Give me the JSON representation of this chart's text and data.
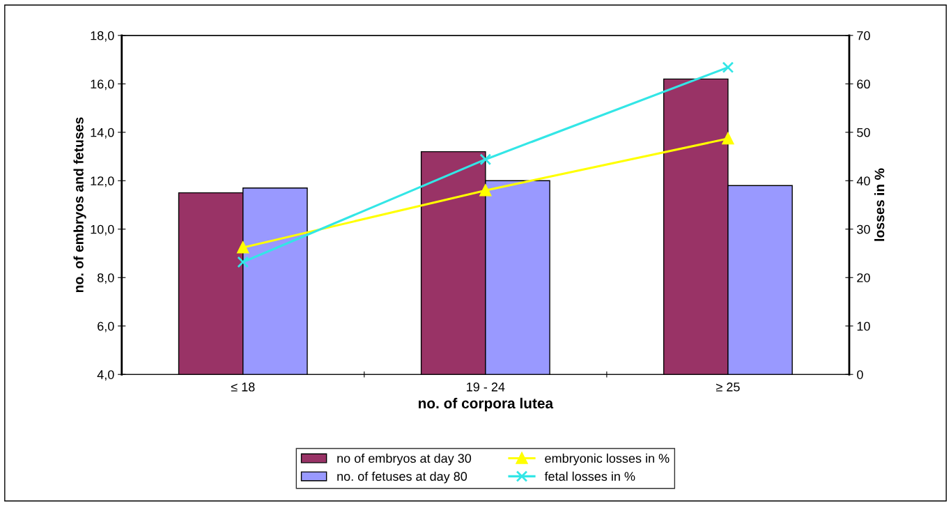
{
  "chart_data": {
    "type": "bar",
    "xlabel": "no. of corpora lutea",
    "ylabel": "no. of embryos and fetuses",
    "y2label": "losses in %",
    "categories": [
      "≤ 18",
      "19 - 24",
      "≥ 25"
    ],
    "series": [
      {
        "name": "no of embryos at day 30",
        "color": "#993366",
        "values": [
          11.5,
          13.2,
          16.2
        ]
      },
      {
        "name": "no. of fetuses at day 80",
        "color": "#9999ff",
        "values": [
          11.7,
          12.0,
          11.8
        ]
      },
      {
        "name": "embryonic losses in %",
        "type": "line",
        "axis": "y2",
        "marker": "triangle",
        "color": "#ffff00",
        "values": [
          26.2,
          38.0,
          48.7
        ]
      },
      {
        "name": "fetal losses in %",
        "type": "line",
        "axis": "y2",
        "marker": "cross",
        "color": "#33e6e6",
        "values": [
          23.2,
          44.4,
          63.4
        ]
      }
    ],
    "ylim": [
      4,
      18
    ],
    "yticks": [
      {
        "value": 4,
        "label": "4,0"
      },
      {
        "value": 6,
        "label": "6,0"
      },
      {
        "value": 8,
        "label": "8,0"
      },
      {
        "value": 10,
        "label": "10,0"
      },
      {
        "value": 12,
        "label": "12,0"
      },
      {
        "value": 14,
        "label": "14,0"
      },
      {
        "value": 16,
        "label": "16,0"
      },
      {
        "value": 18,
        "label": "18,0"
      }
    ],
    "y2lim": [
      0,
      70
    ],
    "y2ticks": [
      0,
      10,
      20,
      30,
      40,
      50,
      60,
      70
    ],
    "grid": false,
    "legend": "bottom"
  }
}
